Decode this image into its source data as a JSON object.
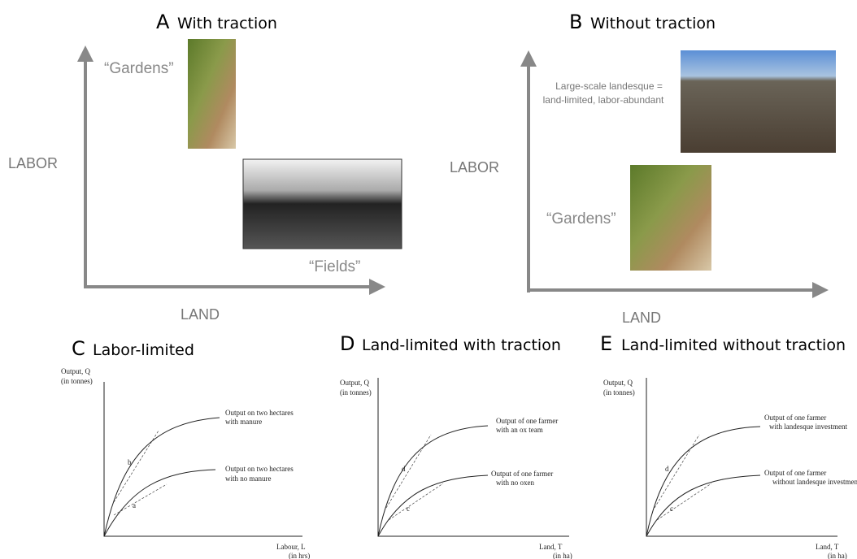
{
  "panels": [
    {
      "letter": "A",
      "title": "With traction",
      "y_label": "LABOR",
      "x_label": "LAND",
      "photo_labels": [
        "“Gardens”",
        "“Fields”"
      ]
    },
    {
      "letter": "B",
      "title": "Without traction",
      "y_label": "LABOR",
      "x_label": "LAND",
      "photo_labels": [
        [
          "Large-scale landesque =",
          "land-limited, labor-abundant"
        ],
        "“Gardens”"
      ]
    },
    {
      "letter": "C",
      "title": "Labor-limited",
      "y_label": [
        "Output, Q",
        "(in tonnes)"
      ],
      "x_label": [
        "Labour, L",
        "(in hrs)"
      ],
      "curves": [
        {
          "label": [
            "Output on two hectares",
            "with manure"
          ],
          "point": "b"
        },
        {
          "label": [
            "Output on two hectares",
            "with no manure"
          ],
          "point": "a"
        }
      ]
    },
    {
      "letter": "D",
      "title": "Land-limited with traction",
      "y_label": [
        "Output, Q",
        "(in tonnes)"
      ],
      "x_label": [
        "Land, T",
        "(in ha)"
      ],
      "curves": [
        {
          "label": [
            "Output of one farmer",
            "with an ox team"
          ],
          "point": "d"
        },
        {
          "label": [
            "Output of one farmer",
            "with no oxen"
          ],
          "point": "c"
        }
      ]
    },
    {
      "letter": "E",
      "title": "Land-limited without traction",
      "y_label": [
        "Output, Q",
        "(in tonnes)"
      ],
      "x_label": [
        "Land, T",
        "(in ha)"
      ],
      "curves": [
        {
          "label": [
            "Output of one farmer",
            "with landesque investment"
          ],
          "point": "d"
        },
        {
          "label": [
            "Output of one farmer",
            "without landesque investment"
          ],
          "point": "c"
        }
      ]
    }
  ]
}
